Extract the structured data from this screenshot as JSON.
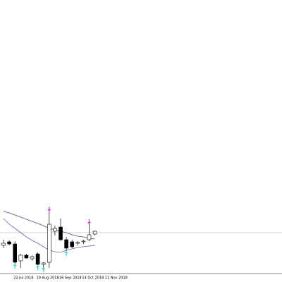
{
  "chart_data": {
    "type": "candlestick",
    "categories": [
      null,
      null,
      "22 Jul 2018",
      null,
      null,
      null,
      "19 Aug 2018",
      null,
      null,
      null,
      "16 Sep 2018",
      null,
      null,
      null,
      "14 Oct 2018",
      null,
      null,
      null,
      "11 Nov 2018"
    ],
    "open": [
      52,
      57,
      54,
      30,
      38,
      33,
      40,
      25,
      28,
      72,
      78,
      60,
      57,
      55,
      57,
      60,
      68,
      null,
      null
    ],
    "high": [
      60,
      59,
      58,
      40,
      40,
      38,
      42,
      28,
      100,
      80,
      90,
      64,
      60,
      58,
      60,
      82,
      73,
      null,
      null
    ],
    "low": [
      48,
      52,
      26,
      20,
      33,
      30,
      24,
      20,
      20,
      66,
      58,
      44,
      48,
      52,
      54,
      58,
      66,
      null,
      null
    ],
    "close": [
      55,
      54,
      28,
      38,
      34,
      36,
      25,
      27,
      82,
      76,
      60,
      48,
      50,
      56,
      58,
      67,
      72,
      null,
      null
    ],
    "up_color": "#ffffff",
    "down_color": "#000000",
    "wick_color": "#000000",
    "series": [
      {
        "color": "#4a4a6a",
        "values": [
          100,
          98,
          95,
          92,
          89,
          86,
          83,
          80,
          76,
          74,
          72,
          70,
          67,
          65,
          64,
          62,
          61,
          null,
          null
        ]
      },
      {
        "color": "#7a5ca8",
        "values": [
          90,
          82,
          76,
          70,
          64,
          59,
          55,
          50,
          45,
          43,
          42,
          45,
          47,
          49,
          50,
          51,
          52,
          null,
          null
        ]
      }
    ],
    "fractals_high": {
      "color": "#cc33cc",
      "values": [
        null,
        null,
        null,
        null,
        null,
        null,
        null,
        null,
        104,
        null,
        null,
        null,
        null,
        null,
        null,
        86,
        null,
        null,
        null
      ]
    },
    "fractals_low": {
      "color": "#33cccc",
      "values": [
        null,
        null,
        22,
        null,
        null,
        null,
        20,
        17,
        null,
        null,
        null,
        40,
        null,
        null,
        null,
        null,
        null,
        null,
        null
      ]
    },
    "price_line": {
      "value": 70,
      "color": "#c0c0c0"
    },
    "ylim": [
      0,
      400
    ]
  }
}
